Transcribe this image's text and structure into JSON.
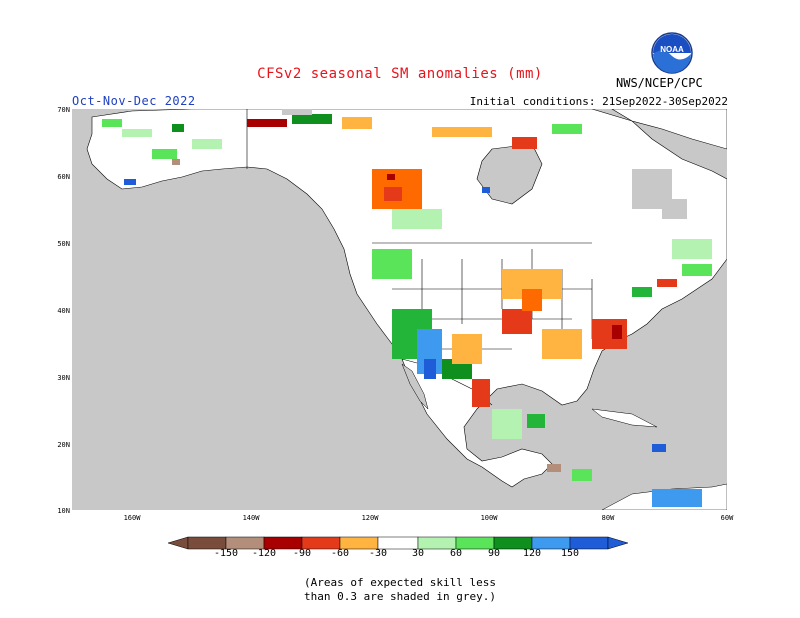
{
  "title": "CFSv2 seasonal SM anomalies (mm)",
  "period": "Oct-Nov-Dec 2022",
  "initial_conditions": "Initial conditions: 21Sep2022-30Sep2022",
  "source": "NWS/NCEP/CPC",
  "logo_text": "NOAA",
  "lat_labels": [
    "70N",
    "60N",
    "50N",
    "40N",
    "30N",
    "20N",
    "10N"
  ],
  "lon_labels": [
    "160W",
    "140W",
    "120W",
    "100W",
    "80W",
    "60W"
  ],
  "colorbar": {
    "labels": [
      "-150",
      "-120",
      "-90",
      "-60",
      "-30",
      "30",
      "60",
      "90",
      "120",
      "150"
    ],
    "colors": [
      "#7a4c3c",
      "#b38e7a",
      "#a80000",
      "#e53a1a",
      "#ff6a00",
      "#ffb341",
      "#ffffff",
      "#b3f2b0",
      "#5ae45a",
      "#23b53a",
      "#0e8f1e",
      "#3d9aef",
      "#1f5cd8"
    ]
  },
  "colors": {
    "title": "#e8141c",
    "period": "#2040c0",
    "land": "#ffffff",
    "ocean": "#c8c8c8",
    "low_skill": "#c8c8c8"
  },
  "note": "(Areas of expected skill less\nthan 0.3 are shaded in grey.)"
}
